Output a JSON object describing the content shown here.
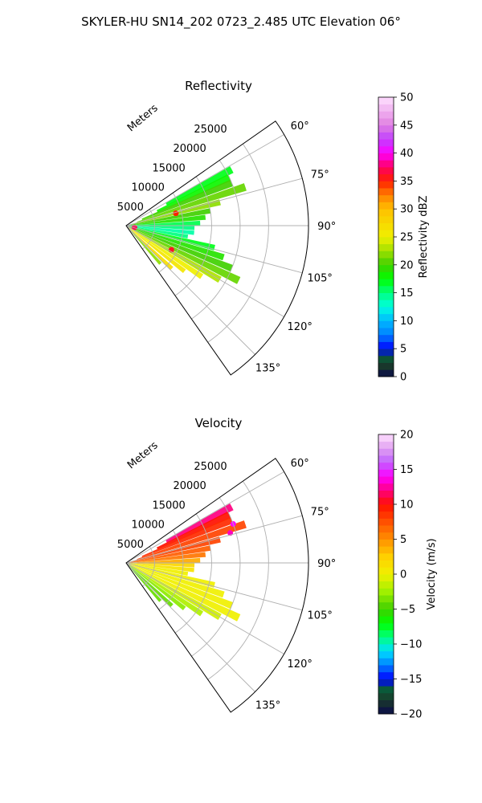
{
  "figure": {
    "title": "SKYLER-HU  SN14_202  0723_2.485 UTC Elevation 06°"
  },
  "chart_data": [
    {
      "type": "heatmap",
      "projection": "polar-sector",
      "title": "Reflectivity",
      "range_axis_label": "Meters",
      "range_ticks": [
        5000,
        10000,
        15000,
        20000,
        25000
      ],
      "range_tick_labels": [
        "5000",
        "10000",
        "15000",
        "20000",
        "25000"
      ],
      "range_max": 32000,
      "azimuth_range_deg": [
        55,
        145
      ],
      "azimuth_ticks": [
        60,
        75,
        90,
        105,
        120,
        135
      ],
      "azimuth_tick_labels": [
        "60°",
        "75°",
        "90°",
        "105°",
        "120°",
        "135°"
      ],
      "grid": true,
      "colorbar": {
        "label": "Reflectivity dBZ",
        "min": 0,
        "max": 50,
        "ticks": [
          0,
          5,
          10,
          15,
          20,
          25,
          30,
          35,
          40,
          45,
          50
        ],
        "tick_labels": [
          "0",
          "5",
          "10",
          "15",
          "20",
          "25",
          "30",
          "35",
          "40",
          "45",
          "50"
        ],
        "stops": [
          {
            "v": 0,
            "c": "#0a0a4a"
          },
          {
            "v": 2,
            "c": "#1a3a2a"
          },
          {
            "v": 3.5,
            "c": "#0a5a3a"
          },
          {
            "v": 5,
            "c": "#0000ff"
          },
          {
            "v": 7.5,
            "c": "#0080ff"
          },
          {
            "v": 10,
            "c": "#00b8ff"
          },
          {
            "v": 12.5,
            "c": "#00ffe0"
          },
          {
            "v": 15,
            "c": "#00ff80"
          },
          {
            "v": 17.5,
            "c": "#00ff00"
          },
          {
            "v": 20,
            "c": "#40d000"
          },
          {
            "v": 22.5,
            "c": "#a0e000"
          },
          {
            "v": 25,
            "c": "#f0f000"
          },
          {
            "v": 30,
            "c": "#ffc000"
          },
          {
            "v": 32.5,
            "c": "#ff8000"
          },
          {
            "v": 35,
            "c": "#ff2000"
          },
          {
            "v": 37.5,
            "c": "#ff0060"
          },
          {
            "v": 40,
            "c": "#ff00ff"
          },
          {
            "v": 42.5,
            "c": "#c040ff"
          },
          {
            "v": 45,
            "c": "#e080e0"
          },
          {
            "v": 50,
            "c": "#ffe0ff"
          }
        ]
      },
      "cells": [
        {
          "az": 62,
          "r": [
            8000,
            21000
          ],
          "v": 17
        },
        {
          "az": 65,
          "r": [
            6000,
            20000
          ],
          "v": 18
        },
        {
          "az": 68,
          "r": [
            3000,
            20000
          ],
          "v": 20
        },
        {
          "az": 72,
          "r": [
            2000,
            22000
          ],
          "v": 21
        },
        {
          "az": 76,
          "r": [
            1000,
            17000
          ],
          "v": 22
        },
        {
          "az": 80,
          "r": [
            500,
            15000
          ],
          "v": 20
        },
        {
          "az": 84,
          "r": [
            500,
            14000
          ],
          "v": 19
        },
        {
          "az": 88,
          "r": [
            500,
            13000
          ],
          "v": 16
        },
        {
          "az": 92,
          "r": [
            500,
            12000
          ],
          "v": 15
        },
        {
          "az": 96,
          "r": [
            500,
            12000
          ],
          "v": 14
        },
        {
          "az": 100,
          "r": [
            500,
            11000
          ],
          "v": 15
        },
        {
          "az": 104,
          "r": [
            500,
            16000
          ],
          "v": 17
        },
        {
          "az": 108,
          "r": [
            500,
            18000
          ],
          "v": 19
        },
        {
          "az": 112,
          "r": [
            500,
            20000
          ],
          "v": 20
        },
        {
          "az": 116,
          "r": [
            500,
            22000
          ],
          "v": 21
        },
        {
          "az": 120,
          "r": [
            500,
            19000
          ],
          "v": 23
        },
        {
          "az": 124,
          "r": [
            500,
            16000
          ],
          "v": 25
        },
        {
          "az": 128,
          "r": [
            500,
            13000
          ],
          "v": 26
        },
        {
          "az": 133,
          "r": [
            500,
            11000
          ],
          "v": 27
        },
        {
          "az": 138,
          "r": [
            500,
            9000
          ],
          "v": 22
        }
      ],
      "hotspots": [
        {
          "az": 102,
          "r": 1500,
          "v": 37
        },
        {
          "az": 118,
          "r": 9000,
          "v": 36
        },
        {
          "az": 76,
          "r": 9000,
          "v": 35
        }
      ]
    },
    {
      "type": "heatmap",
      "projection": "polar-sector",
      "title": "Velocity",
      "range_axis_label": "Meters",
      "range_ticks": [
        5000,
        10000,
        15000,
        20000,
        25000
      ],
      "range_tick_labels": [
        "5000",
        "10000",
        "15000",
        "20000",
        "25000"
      ],
      "range_max": 32000,
      "azimuth_range_deg": [
        55,
        145
      ],
      "azimuth_ticks": [
        60,
        75,
        90,
        105,
        120,
        135
      ],
      "azimuth_tick_labels": [
        "60°",
        "75°",
        "90°",
        "105°",
        "120°",
        "135°"
      ],
      "grid": true,
      "colorbar": {
        "label": "Velocity (m/s)",
        "min": -20,
        "max": 20,
        "ticks": [
          -20,
          -15,
          -10,
          -5,
          0,
          5,
          10,
          15,
          20
        ],
        "tick_labels": [
          "−20",
          "−15",
          "−10",
          "−5",
          "0",
          "5",
          "10",
          "15",
          "20"
        ],
        "stops": [
          {
            "v": -20,
            "c": "#0a0a4a"
          },
          {
            "v": -18,
            "c": "#1a3a2a"
          },
          {
            "v": -16.5,
            "c": "#0a5a3a"
          },
          {
            "v": -15,
            "c": "#0000ff"
          },
          {
            "v": -13,
            "c": "#0080ff"
          },
          {
            "v": -11,
            "c": "#00e0ff"
          },
          {
            "v": -9,
            "c": "#00ff80"
          },
          {
            "v": -7,
            "c": "#00ff00"
          },
          {
            "v": -5,
            "c": "#40d000"
          },
          {
            "v": -2.5,
            "c": "#a0f000"
          },
          {
            "v": 0,
            "c": "#f0f000"
          },
          {
            "v": 2.5,
            "c": "#ffd000"
          },
          {
            "v": 5,
            "c": "#ff9000"
          },
          {
            "v": 7.5,
            "c": "#ff5000"
          },
          {
            "v": 10,
            "c": "#ff1000"
          },
          {
            "v": 12,
            "c": "#ff0080"
          },
          {
            "v": 14,
            "c": "#ff00ff"
          },
          {
            "v": 16,
            "c": "#c060ff"
          },
          {
            "v": 18,
            "c": "#e0a0f0"
          },
          {
            "v": 20,
            "c": "#ffe0ff"
          }
        ]
      },
      "cells": [
        {
          "az": 62,
          "r": [
            8000,
            21000
          ],
          "v": 12
        },
        {
          "az": 65,
          "r": [
            6000,
            20000
          ],
          "v": 10
        },
        {
          "az": 68,
          "r": [
            3000,
            20000
          ],
          "v": 9
        },
        {
          "az": 72,
          "r": [
            2000,
            22000
          ],
          "v": 8
        },
        {
          "az": 76,
          "r": [
            1000,
            17000
          ],
          "v": 8
        },
        {
          "az": 80,
          "r": [
            500,
            15000
          ],
          "v": 7
        },
        {
          "az": 84,
          "r": [
            500,
            14000
          ],
          "v": 6
        },
        {
          "az": 88,
          "r": [
            500,
            13000
          ],
          "v": 4
        },
        {
          "az": 92,
          "r": [
            500,
            12000
          ],
          "v": 2
        },
        {
          "az": 96,
          "r": [
            500,
            12000
          ],
          "v": 1
        },
        {
          "az": 100,
          "r": [
            500,
            11000
          ],
          "v": 0
        },
        {
          "az": 104,
          "r": [
            500,
            16000
          ],
          "v": 0
        },
        {
          "az": 108,
          "r": [
            500,
            18000
          ],
          "v": 0
        },
        {
          "az": 112,
          "r": [
            500,
            20000
          ],
          "v": 0
        },
        {
          "az": 116,
          "r": [
            500,
            22000
          ],
          "v": 0
        },
        {
          "az": 120,
          "r": [
            500,
            19000
          ],
          "v": -1
        },
        {
          "az": 124,
          "r": [
            500,
            16000
          ],
          "v": -2
        },
        {
          "az": 128,
          "r": [
            500,
            13000
          ],
          "v": -3
        },
        {
          "az": 133,
          "r": [
            500,
            11000
          ],
          "v": -4
        },
        {
          "az": 138,
          "r": [
            500,
            9000
          ],
          "v": -4
        }
      ],
      "hotspots": [
        {
          "az": 70,
          "r": 20000,
          "v": 14
        },
        {
          "az": 74,
          "r": 19000,
          "v": 13
        }
      ]
    }
  ]
}
